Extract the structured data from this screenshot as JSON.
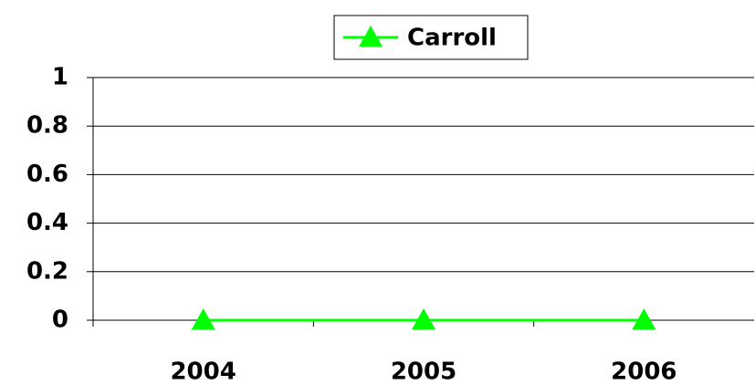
{
  "chart_data": {
    "type": "line",
    "categories": [
      "2004",
      "2005",
      "2006"
    ],
    "series": [
      {
        "name": "Carroll",
        "color": "#00ff00",
        "values": [
          0,
          0,
          0
        ]
      }
    ],
    "ylim": [
      0,
      1
    ],
    "yticks": [
      0,
      0.2,
      0.4,
      0.6,
      0.8,
      1
    ],
    "grid": true,
    "legend": "top"
  }
}
